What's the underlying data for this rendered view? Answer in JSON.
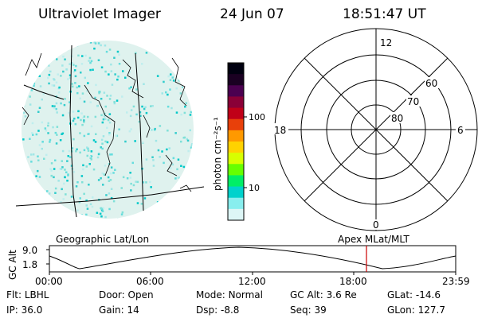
{
  "header": {
    "instrument": "Ultraviolet Imager",
    "date": "24 Jun 07",
    "time": "18:51:47 UT"
  },
  "colorbar": {
    "unit_label": "photon cm⁻²s⁻¹",
    "ticks": [
      "100",
      "10"
    ],
    "colors": [
      "#000010",
      "#1a0022",
      "#4b0050",
      "#8a0037",
      "#c00018",
      "#e8400a",
      "#ff9900",
      "#ffd200",
      "#d8ff00",
      "#66ff00",
      "#00ee66",
      "#00d2cc",
      "#88eeee",
      "#ddf6f6"
    ]
  },
  "polar": {
    "mlt_labels": {
      "top": "12",
      "left": "18",
      "right": "6",
      "bottom": "0"
    },
    "lat_labels": [
      "60",
      "70",
      "80"
    ]
  },
  "timeline": {
    "left_caption": "Geographic Lat/Lon",
    "right_caption": "Apex MLat/MLT",
    "axis_label": "GC Alt",
    "y_ticks": [
      "9.0",
      "1.8"
    ],
    "x_ticks": [
      "00:00",
      "06:00",
      "12:00",
      "18:00",
      "23:59"
    ],
    "marker_color": "#cc0000"
  },
  "info": {
    "row1": [
      {
        "label": "Flt:",
        "value": "LBHL"
      },
      {
        "label": "Door:",
        "value": "Open"
      },
      {
        "label": "Mode:",
        "value": "Normal"
      },
      {
        "label": "GC Alt:",
        "value": "3.6 Re"
      },
      {
        "label": "GLat:",
        "value": "-14.6"
      }
    ],
    "row2": [
      {
        "label": "IP:",
        "value": "36.0"
      },
      {
        "label": "Gain:",
        "value": "14"
      },
      {
        "label": "Dsp:",
        "value": "-8.8"
      },
      {
        "label": "Seq:",
        "value": "39"
      },
      {
        "label": "GLon:",
        "value": "127.7"
      }
    ]
  }
}
